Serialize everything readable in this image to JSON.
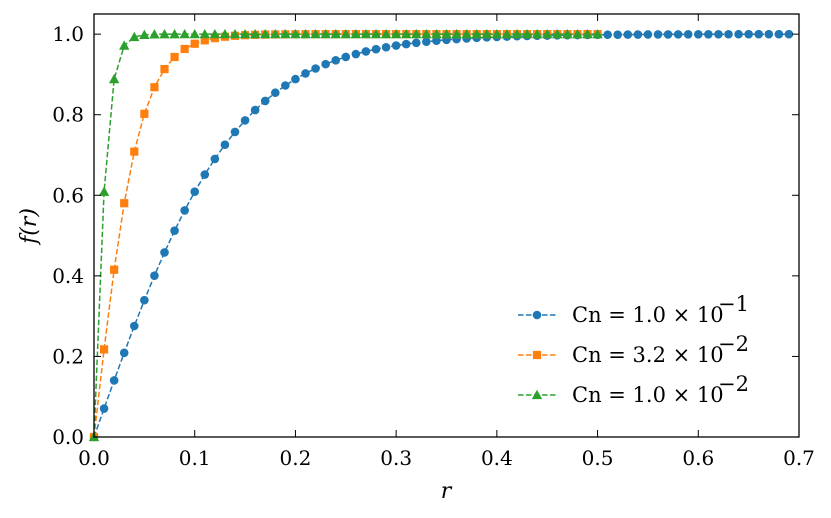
{
  "chart_data": {
    "type": "line",
    "xlabel": "r",
    "ylabel": "f(r)",
    "xlim": [
      0.0,
      0.7
    ],
    "ylim": [
      0.0,
      1.05
    ],
    "xticks": [
      0.0,
      0.1,
      0.2,
      0.3,
      0.4,
      0.5,
      0.6,
      0.7
    ],
    "yticks": [
      0.0,
      0.2,
      0.4,
      0.6,
      0.8,
      1.0
    ],
    "xtick_labels": [
      "0.0",
      "0.1",
      "0.2",
      "0.3",
      "0.4",
      "0.5",
      "0.6",
      "0.7"
    ],
    "ytick_labels": [
      "0.0",
      "0.2",
      "0.4",
      "0.6",
      "0.8",
      "1.0"
    ],
    "legend_position": "bottom-right",
    "series": [
      {
        "name": "Cn = 1.0 × 10^-1",
        "legend_main": "Cn = 1.0 × 10",
        "legend_exp": "−1",
        "color": "#1f77b4",
        "marker": "circle",
        "x_start": 0.0,
        "x_step": 0.01,
        "x_end": 0.69,
        "char_scale": 0.1
      },
      {
        "name": "Cn = 3.2 × 10^-2",
        "legend_main": "Cn = 3.2 × 10",
        "legend_exp": "−2",
        "color": "#ff7f0e",
        "marker": "square",
        "x_start": 0.0,
        "x_step": 0.01,
        "x_end": 0.5,
        "char_scale": 0.032
      },
      {
        "name": "Cn = 1.0 × 10^-2",
        "legend_main": "Cn = 1.0 × 10",
        "legend_exp": "−2",
        "color": "#2ca02c",
        "marker": "triangle",
        "x_start": 0.0,
        "x_step": 0.01,
        "x_end": 0.5,
        "char_scale": 0.01
      }
    ]
  }
}
